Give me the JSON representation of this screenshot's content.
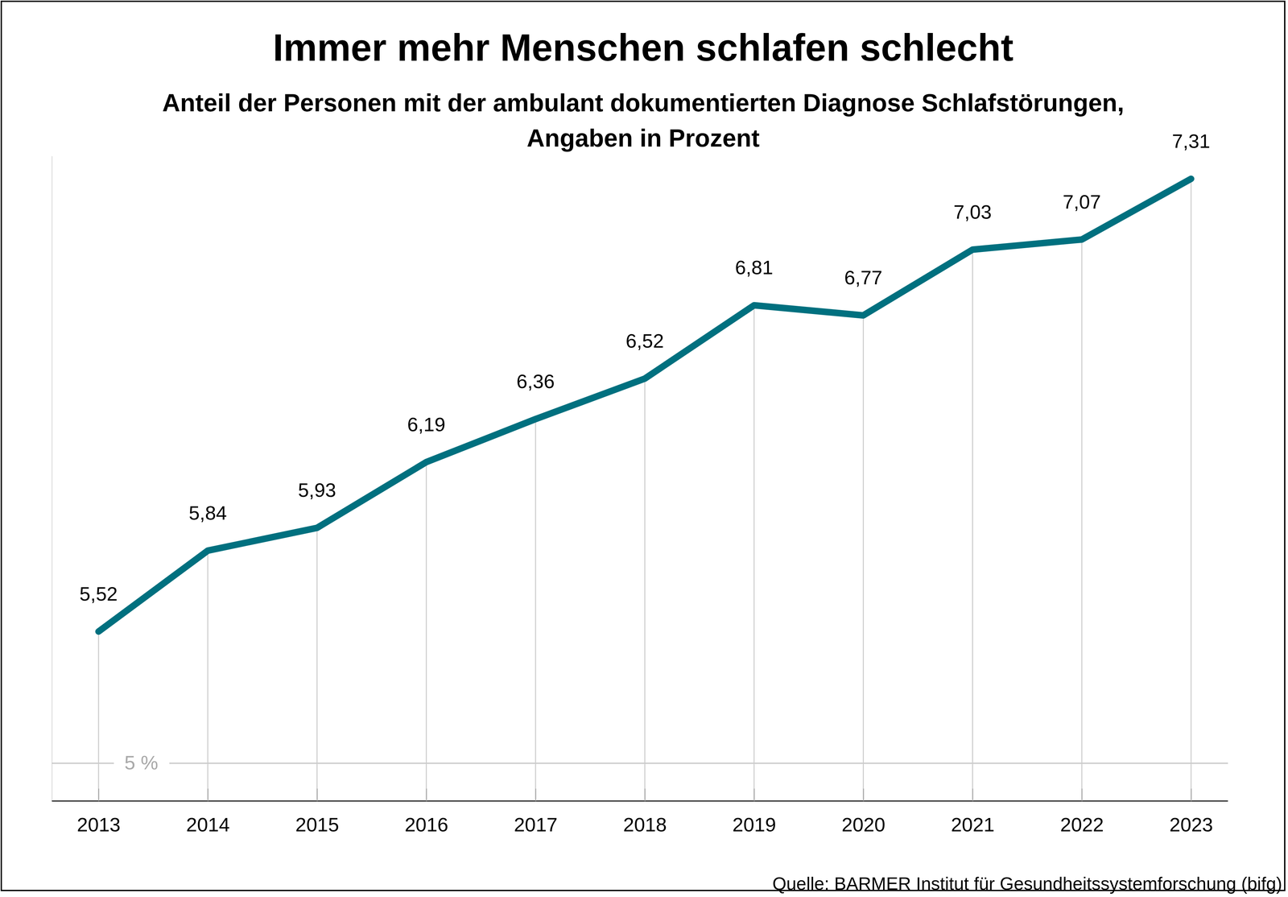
{
  "chart_data": {
    "type": "line",
    "title": "Immer mehr Menschen schlafen schlecht",
    "subtitle": [
      "Anteil der Personen mit der ambulant dokumentierten Diagnose Schlafstörungen,",
      "Angaben in Prozent"
    ],
    "source": "Quelle: BARMER Institut für Gesundheitssystemforschung (bifg)",
    "categories": [
      "2013",
      "2014",
      "2015",
      "2016",
      "2017",
      "2018",
      "2019",
      "2020",
      "2021",
      "2022",
      "2023"
    ],
    "values": [
      5.52,
      5.84,
      5.93,
      6.19,
      6.36,
      6.52,
      6.81,
      6.77,
      7.03,
      7.07,
      7.31
    ],
    "value_labels": [
      "5,52",
      "5,84",
      "5,93",
      "6,19",
      "6,36",
      "6,52",
      "6,81",
      "6,77",
      "7,03",
      "7,07",
      "7,31"
    ],
    "color": "#00707f",
    "ylim": [
      4.85,
      7.4
    ],
    "yticks": [
      {
        "value": 5,
        "label": "5 %"
      }
    ],
    "grid": true,
    "data_labels": true
  }
}
